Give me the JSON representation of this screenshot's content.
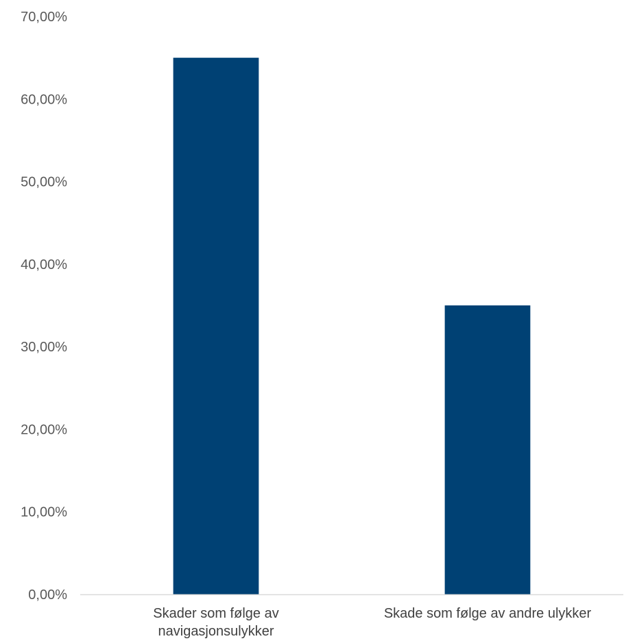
{
  "chart_data": {
    "type": "bar",
    "categories": [
      [
        "Skader som følge av",
        "navigasjonsulykker"
      ],
      [
        "Skade som følge av andre ulykker"
      ]
    ],
    "values": [
      65.0,
      35.0
    ],
    "ylim": [
      0,
      70
    ],
    "yticks": [
      0,
      10,
      20,
      30,
      40,
      50,
      60,
      70
    ],
    "ytick_labels": [
      "0,00%",
      "10,00%",
      "20,00%",
      "30,00%",
      "40,00%",
      "50,00%",
      "60,00%",
      "70,00%"
    ],
    "grid": false,
    "legend": "none",
    "title": "",
    "xlabel": "",
    "ylabel": "",
    "colors": {
      "bar": "#004174",
      "axis": "#d9d9d9"
    }
  }
}
